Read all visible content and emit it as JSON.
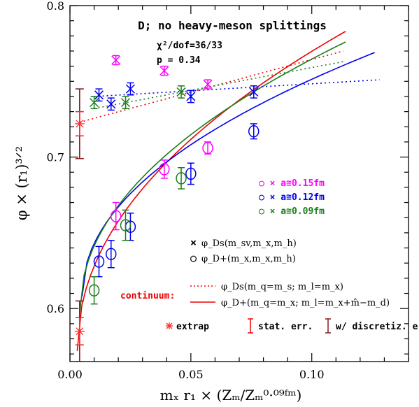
{
  "chart_data": {
    "type": "scatter",
    "title": "D;  no heavy-meson splittings",
    "fit_info": [
      "χ²/dof=36/33",
      "p = 0.34"
    ],
    "xlabel": "mₓ r₁ × (Zₘ/Zₘ⁰·⁰⁹ᶠᵐ)",
    "ylabel": "φ × (r₁)³ᐟ²",
    "xlim": [
      0,
      0.14
    ],
    "ylim": [
      0.565,
      0.8
    ],
    "x_ticks": [
      0.0,
      0.05,
      0.1
    ],
    "x_tick_labels": [
      "0.00",
      "0.05",
      "0.10"
    ],
    "y_ticks": [
      0.6,
      0.7,
      0.8
    ],
    "y_tick_labels": [
      "0.6",
      "0.7",
      "0.8"
    ],
    "colors": {
      "a015": "#ff00ff",
      "a012": "#0000ee",
      "a009": "#1a7f1a",
      "extrap": "#ff2a2a",
      "discr": "#8b1a1a",
      "cont_red": "#ee0000"
    },
    "legend_ensembles": [
      {
        "label": "○ × a≅0.15fm",
        "color": "#ff00ff"
      },
      {
        "label": "○ × a≅0.12fm",
        "color": "#0000ee"
      },
      {
        "label": "○ × a≅0.09fm",
        "color": "#1a7f1a"
      }
    ],
    "legend_symbols": [
      {
        "symbol": "×",
        "label": "φ_Ds(m_sv,m_x,m_h)"
      },
      {
        "symbol": "○",
        "label": "φ_D+(m_x,m_x,m_h)"
      }
    ],
    "continuum_label": "continuum:",
    "continuum_legend": [
      {
        "style": "dotted",
        "label": "φ_Ds(m_q=m_s; m_l=m_x)"
      },
      {
        "style": "solid",
        "label": "φ_D+(m_q=m_x; m_l=m_x+m̂−m_d)"
      }
    ],
    "bottom_legend": [
      {
        "kind": "extrap",
        "label": "extrap"
      },
      {
        "kind": "stat",
        "label": "stat. err."
      },
      {
        "kind": "discr",
        "label": "w/ discretiz. err."
      }
    ],
    "series": [
      {
        "name": "a≅0.15fm φ_Ds",
        "marker": "x",
        "color_key": "a015",
        "points": [
          [
            0.019,
            0.764,
            0.003
          ],
          [
            0.039,
            0.757,
            0.003
          ],
          [
            0.057,
            0.748,
            0.003
          ]
        ]
      },
      {
        "name": "a≅0.15fm φ_D+",
        "marker": "o",
        "color_key": "a015",
        "points": [
          [
            0.019,
            0.661,
            0.009
          ],
          [
            0.039,
            0.692,
            0.006
          ],
          [
            0.057,
            0.706,
            0.004
          ]
        ]
      },
      {
        "name": "a≅0.12fm φ_Ds",
        "marker": "x",
        "color_key": "a012",
        "points": [
          [
            0.012,
            0.741,
            0.004
          ],
          [
            0.017,
            0.735,
            0.004
          ],
          [
            0.025,
            0.745,
            0.004
          ],
          [
            0.05,
            0.74,
            0.004
          ],
          [
            0.076,
            0.743,
            0.004
          ]
        ]
      },
      {
        "name": "a≅0.12fm φ_D+",
        "marker": "o",
        "color_key": "a012",
        "points": [
          [
            0.012,
            0.631,
            0.01
          ],
          [
            0.017,
            0.636,
            0.009
          ],
          [
            0.025,
            0.654,
            0.009
          ],
          [
            0.05,
            0.689,
            0.007
          ],
          [
            0.076,
            0.717,
            0.005
          ]
        ]
      },
      {
        "name": "a≅0.09fm φ_Ds",
        "marker": "x",
        "color_key": "a009",
        "points": [
          [
            0.01,
            0.736,
            0.004
          ],
          [
            0.023,
            0.736,
            0.004
          ],
          [
            0.046,
            0.743,
            0.004
          ]
        ]
      },
      {
        "name": "a≅0.09fm φ_D+",
        "marker": "o",
        "color_key": "a009",
        "points": [
          [
            0.01,
            0.612,
            0.009
          ],
          [
            0.023,
            0.655,
            0.01
          ],
          [
            0.046,
            0.686,
            0.007
          ]
        ]
      }
    ],
    "extrapolated": [
      {
        "label": "φ_Ds extrap",
        "x": 0.004,
        "y": 0.722,
        "stat_err": 0.008,
        "total_err": 0.023
      },
      {
        "label": "φ_D+ extrap",
        "x": 0.004,
        "y": 0.585,
        "stat_err": 0.009,
        "total_err": 0.02
      }
    ],
    "fit_curves": [
      {
        "name": "continuum φ_D+",
        "style": "solid",
        "color_key": "cont_red",
        "x_range": [
          0.003,
          0.114
        ],
        "y_start": 0.572,
        "y_end": 0.783
      },
      {
        "name": "a≅0.12fm φ_D+ fit",
        "style": "solid",
        "color_key": "a012",
        "x_range": [
          0.005,
          0.126
        ],
        "y_start": 0.608,
        "y_end": 0.769
      },
      {
        "name": "a≅0.09fm φ_D+ fit",
        "style": "solid",
        "color_key": "a009",
        "x_range": [
          0.004,
          0.114
        ],
        "y_start": 0.597,
        "y_end": 0.776
      },
      {
        "name": "continuum φ_Ds",
        "style": "dotted",
        "color_key": "cont_red",
        "x_range": [
          0.004,
          0.113
        ],
        "y_start": 0.723,
        "y_end": 0.77
      },
      {
        "name": "a≅0.09fm φ_Ds fit",
        "style": "dotted",
        "color_key": "a009",
        "x_range": [
          0.01,
          0.113
        ],
        "y_start": 0.732,
        "y_end": 0.763
      },
      {
        "name": "a≅0.12fm φ_Ds fit",
        "style": "dotted",
        "color_key": "a012",
        "x_range": [
          0.01,
          0.128
        ],
        "y_start": 0.74,
        "y_end": 0.751
      }
    ]
  }
}
